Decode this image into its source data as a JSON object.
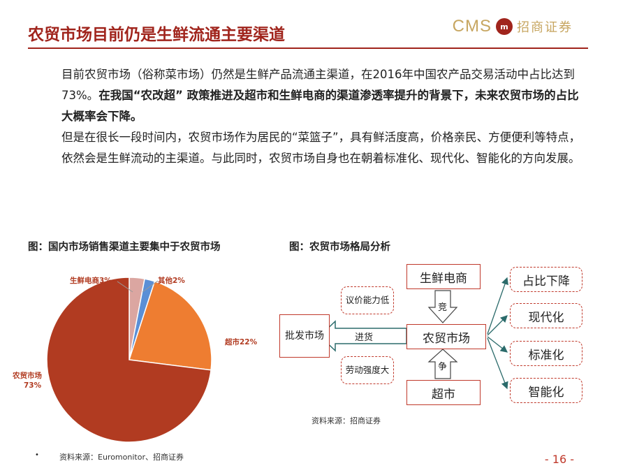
{
  "title": "农贸市场目前仍是生鲜流通主要渠道",
  "logo": {
    "cms": "CMS",
    "badge": "m",
    "cn": "招商证券"
  },
  "paragraph": {
    "p1": "目前农贸市场（俗称菜市场）仍然是生鲜产品流通主渠道，在2016年中国农产品交易活动中占比达到73%。",
    "p1_bold": "在我国“农改超” 政策推进及超市和生鲜电商的渠道渗透率提升的背景下，未来农贸市场的占比大概率会下降。",
    "p2": "但是在很长一段时间内，农贸市场作为居民的“菜篮子”，具有鲜活度高，价格亲民、方便便利等特点，依然会是生鲜流动的主渠道。与此同时，农贸市场自身也在朝着标准化、现代化、智能化的方向发展。"
  },
  "figure_left": {
    "title": "图：国内市场销售渠道主要集中于农贸市场",
    "source": "资料来源：Euromonitor、招商证券"
  },
  "figure_right": {
    "title": "图：农贸市场格局分析",
    "source": "资料来源：招商证券",
    "nodes": {
      "ecommerce": "生鲜电商",
      "market": "农贸市场",
      "supermarket": "超市",
      "wholesale": "批发市场"
    },
    "labels": {
      "bargain": "议价能力低",
      "purchase": "进货",
      "labor": "劳动强度大",
      "compete_top": "竞",
      "compete_bottom": "争"
    },
    "trends": [
      "占比下降",
      "现代化",
      "标准化",
      "智能化"
    ]
  },
  "chart_data": {
    "type": "pie",
    "slices": [
      {
        "name": "生鲜电商",
        "label": "生鲜电商3%",
        "value": 3,
        "color": "#dba6a1"
      },
      {
        "name": "其他",
        "label": "其他2%",
        "value": 2,
        "color": "#5b8fd6"
      },
      {
        "name": "超市",
        "label": "超市22%",
        "value": 22,
        "color": "#ee7d31"
      },
      {
        "name": "农贸市场",
        "label": "农贸市场73%",
        "value": 73,
        "color": "#b13b21"
      }
    ],
    "label_colors": {
      "生鲜电商": "#b13b21",
      "其他": "#b13b21",
      "超市": "#b13b21",
      "农贸市场": "#b13b21"
    },
    "label_text": {
      "ecommerce": "生鲜电商3%",
      "other": "其他2%",
      "supermarket": "超市22%",
      "market_name": "农贸市场",
      "market_value": "73%"
    }
  },
  "page_number": "- 16 -",
  "bullet": "•"
}
